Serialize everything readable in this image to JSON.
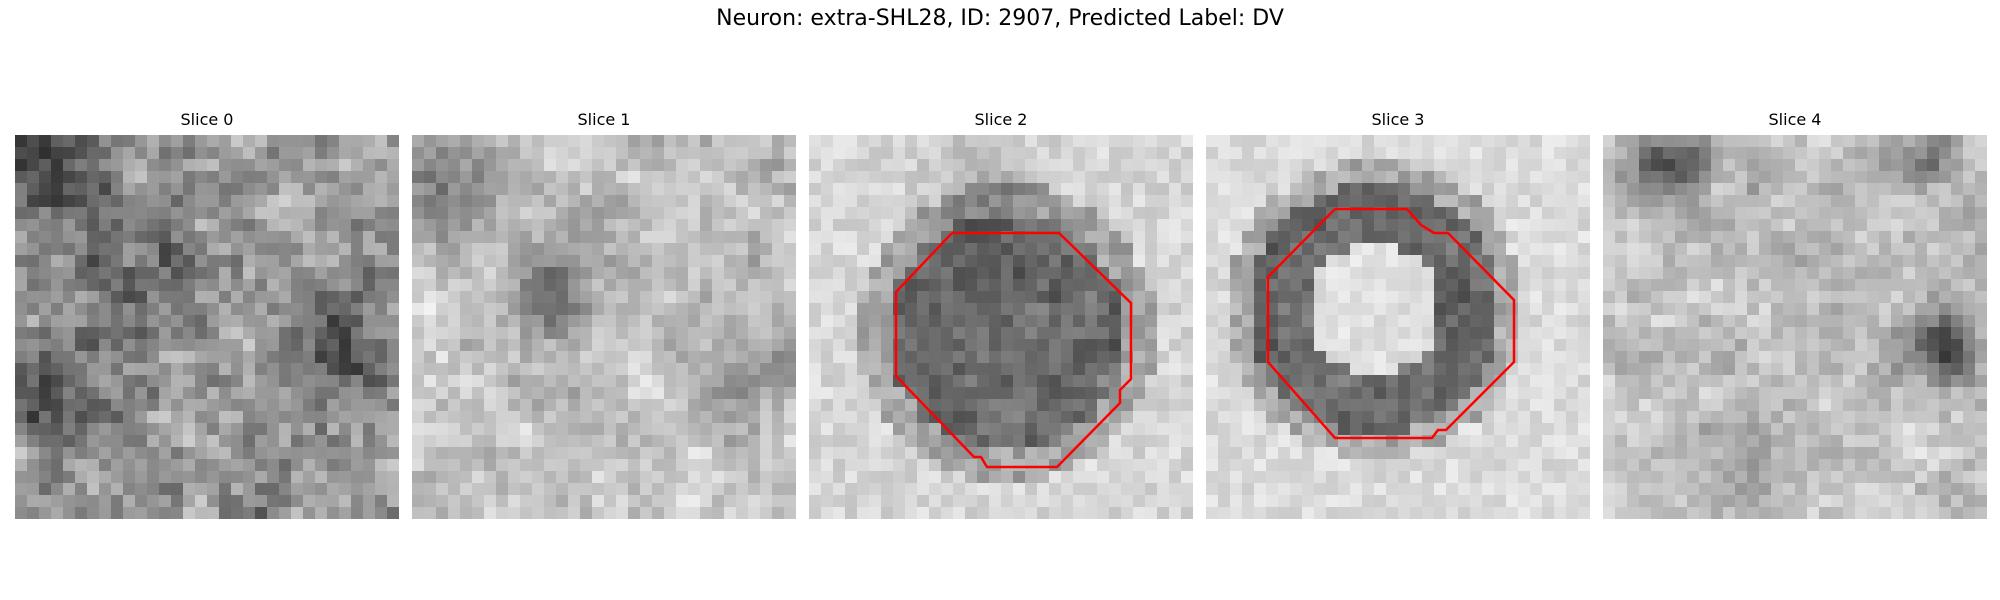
{
  "figure": {
    "title": "Neuron: extra-SHL28, ID: 2907, Predicted Label: DV"
  },
  "panels": [
    {
      "title": "Slice 0",
      "pattern": "noise-dark-corners",
      "has_contour": false
    },
    {
      "title": "Slice 1",
      "pattern": "noise-light",
      "has_contour": false
    },
    {
      "title": "Slice 2",
      "pattern": "dark-cell",
      "has_contour": true
    },
    {
      "title": "Slice 3",
      "pattern": "ring-cell",
      "has_contour": true
    },
    {
      "title": "Slice 4",
      "pattern": "noise-light-blobs",
      "has_contour": false
    }
  ],
  "colors": {
    "contour": "#ff0000",
    "background": "#ffffff"
  },
  "image_grid": 32
}
